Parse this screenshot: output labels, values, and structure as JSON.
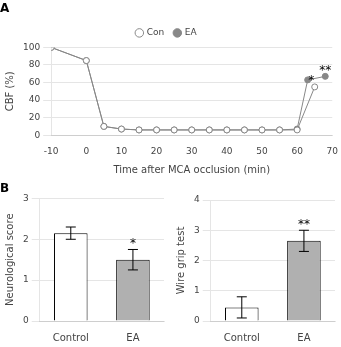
{
  "chart_data": [
    {
      "type": "line",
      "title": "A",
      "xlabel": "Time after MCA occlusion (min)",
      "ylabel": "CBF (%)",
      "series": [
        {
          "name": "Con",
          "color": "#888888",
          "marker": "hollow_circle",
          "x": [
            -10,
            0,
            5,
            10,
            15,
            20,
            25,
            30,
            35,
            40,
            45,
            50,
            55,
            60,
            65
          ],
          "values": [
            100,
            85,
            10,
            7,
            6,
            6,
            6,
            6,
            6,
            6,
            6,
            6,
            6,
            6,
            55
          ]
        },
        {
          "name": "EA",
          "color": "#888888",
          "marker": "circle",
          "x": [
            -10,
            0,
            5,
            10,
            15,
            20,
            25,
            30,
            35,
            40,
            45,
            50,
            55,
            60,
            63,
            68
          ],
          "values": [
            100,
            85,
            10,
            7,
            6,
            6,
            6,
            6,
            6,
            6,
            6,
            6,
            6,
            7,
            63,
            67
          ]
        }
      ],
      "xlim": [
        -10,
        70
      ],
      "ylim": [
        0,
        100
      ],
      "xticks": [
        -10,
        0,
        10,
        20,
        30,
        40,
        50,
        60,
        70
      ],
      "yticks": [
        0,
        20,
        40,
        60,
        80,
        100
      ],
      "grid": true,
      "legend": "top",
      "annotations": [
        {
          "text": "*",
          "x": 64,
          "y": 58
        },
        {
          "text": "**",
          "x": 68,
          "y": 70
        }
      ]
    },
    {
      "type": "bar",
      "title": "B",
      "categories": [
        "Control",
        "EA"
      ],
      "values": [
        2.15,
        1.5
      ],
      "errors": [
        0.15,
        0.25
      ],
      "colors": [
        "#ffffff",
        "#b0b0b0"
      ],
      "ylabel": "Neurological score",
      "ylim": [
        0,
        3
      ],
      "yticks": [
        0,
        1,
        2,
        3
      ],
      "grid": true,
      "annotations": [
        {
          "text": "*",
          "x": "EA",
          "y": 1.82
        }
      ]
    },
    {
      "type": "bar",
      "categories": [
        "Control",
        "EA"
      ],
      "values": [
        0.45,
        2.65
      ],
      "errors": [
        0.35,
        0.35
      ],
      "colors": [
        "#ffffff",
        "#b0b0b0"
      ],
      "ylabel": "Wire grip test",
      "ylim": [
        0,
        4
      ],
      "yticks": [
        0,
        1,
        2,
        3,
        4
      ],
      "grid": true,
      "annotations": [
        {
          "text": "**",
          "x": "EA",
          "y": 3.08
        }
      ]
    }
  ]
}
